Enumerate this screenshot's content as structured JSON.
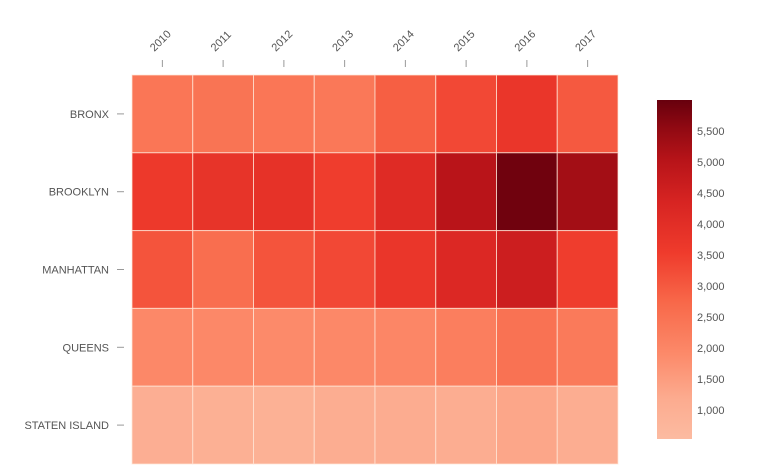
{
  "chart_data": {
    "type": "heatmap",
    "title": "",
    "xlabel": "",
    "ylabel": "",
    "x": [
      "2010",
      "2011",
      "2012",
      "2013",
      "2014",
      "2015",
      "2016",
      "2017"
    ],
    "y": [
      "BRONX",
      "BROOKLYN",
      "MANHATTAN",
      "QUEENS",
      "STATEN ISLAND"
    ],
    "values": [
      [
        2400,
        2450,
        2400,
        2350,
        2900,
        3300,
        3700,
        3000
      ],
      [
        3600,
        3800,
        3850,
        3500,
        4100,
        5000,
        5900,
        5300
      ],
      [
        3100,
        2600,
        3100,
        3300,
        3700,
        4200,
        4600,
        3500
      ],
      [
        1950,
        1950,
        1900,
        1950,
        2000,
        2200,
        2500,
        2300
      ],
      [
        1050,
        1000,
        950,
        1100,
        1150,
        1100,
        1300,
        1100
      ]
    ],
    "x_axis_position": "top",
    "x_tick_rotation": -45,
    "grid": false,
    "colorscale": {
      "name": "Reds",
      "domain": [
        530,
        6000
      ],
      "low_color": "#fcbba1",
      "high_color": "#67000d"
    },
    "legend": {
      "position": "right",
      "type": "continuous-colorbar",
      "ticks": [
        "1,000",
        "1,500",
        "2,000",
        "2,500",
        "3,000",
        "3,500",
        "4,000",
        "4,500",
        "5,000",
        "5,500"
      ],
      "tick_values": [
        1000,
        1500,
        2000,
        2500,
        3000,
        3500,
        4000,
        4500,
        5000,
        5500
      ]
    }
  }
}
